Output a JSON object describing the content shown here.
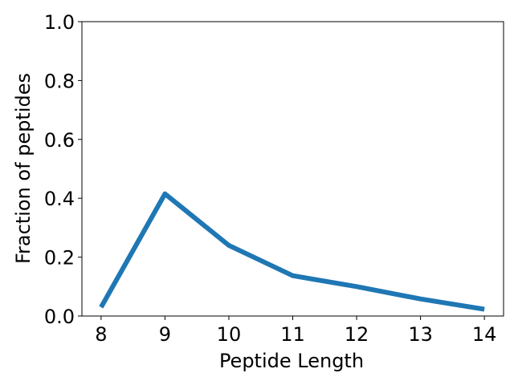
{
  "chart_data": {
    "type": "line",
    "x": [
      8,
      9,
      10,
      11,
      12,
      13,
      14
    ],
    "series": [
      {
        "values": [
          0.03,
          0.415,
          0.24,
          0.137,
          0.1,
          0.058,
          0.023
        ],
        "color": "#1f77b4"
      }
    ],
    "xlabel": "Peptide Length",
    "ylabel": "Fraction of peptides",
    "xlim": [
      7.7,
      14.3
    ],
    "ylim": [
      0.0,
      1.0
    ],
    "xticks": [
      "8",
      "9",
      "10",
      "11",
      "12",
      "13",
      "14"
    ],
    "yticks": [
      "0.0",
      "0.2",
      "0.4",
      "0.6",
      "0.8",
      "1.0"
    ],
    "grid": false
  }
}
